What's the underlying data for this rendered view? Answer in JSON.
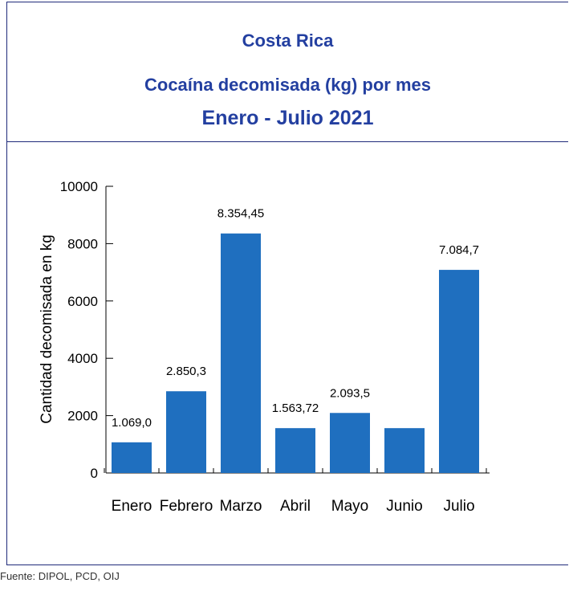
{
  "title": {
    "line1": "Costa Rica",
    "line2": "Cocaína decomisada (kg) por mes",
    "line3": "Enero - Julio 2021"
  },
  "footer": "Fuente: DIPOL, PCD, OIJ",
  "colors": {
    "bar": "#1f6fbf",
    "title": "#233fa0",
    "border": "#1f2a7a"
  },
  "chart_data": {
    "type": "bar",
    "categories": [
      "Enero",
      "Febrero",
      "Marzo",
      "Abril",
      "Mayo",
      "Junio",
      "Julio"
    ],
    "values": [
      1069.0,
      2850.3,
      8354.45,
      1563.72,
      2093.5,
      1563.72,
      7084.7
    ],
    "data_labels": [
      "1.069,0",
      "2.850,3",
      "8.354,45",
      "1.563,72",
      "2.093,5",
      "",
      "7.084,7"
    ],
    "ylabel": "Cantidad decomisada en kg",
    "xlabel": "",
    "ylim": [
      0,
      10000
    ],
    "yticks": [
      0,
      2000,
      4000,
      6000,
      8000,
      10000
    ],
    "grid": false,
    "legend": "none"
  }
}
